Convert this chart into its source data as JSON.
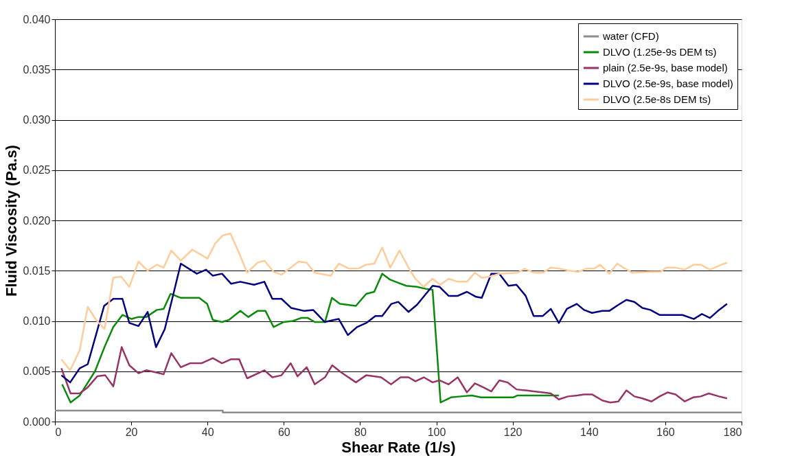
{
  "chart_data": {
    "type": "line",
    "xlabel": "Shear Rate (1/s)",
    "ylabel": "Fluid Viscosity (Pa.s)",
    "xlim": [
      0,
      180
    ],
    "xticks": [
      0,
      20,
      40,
      60,
      80,
      100,
      120,
      140,
      160,
      180
    ],
    "ylim": [
      0,
      0.04
    ],
    "yticks": [
      {
        "value": 0,
        "label": "0.000"
      },
      {
        "value": 0.005,
        "label": "0.005"
      },
      {
        "value": 0.01,
        "label": "0.010"
      },
      {
        "value": 0.015,
        "label": "0.015"
      },
      {
        "value": 0.02,
        "label": "0.020"
      },
      {
        "value": 0.025,
        "label": "0.025"
      },
      {
        "value": 0.03,
        "label": "0.030"
      },
      {
        "value": 0.035,
        "label": "0.035"
      },
      {
        "value": 0.04,
        "label": "0.040"
      }
    ],
    "grid": "y",
    "legend": "top right",
    "marker": "none",
    "line_style": "solid",
    "series": [
      {
        "name": "water (CFD)",
        "color": "#8c8c8c",
        "x": [
          0,
          44,
          44,
          180
        ],
        "values": [
          0.0011,
          0.0011,
          0.0009,
          0.0009
        ]
      },
      {
        "name": "DLVO (1.25e-9s DEM ts)",
        "color": "#098a09",
        "x": [
          1.9,
          4.1,
          6.5,
          10.5,
          13.2,
          15.3,
          17.7,
          20.1,
          21.9,
          24,
          26.7,
          28.5,
          30.3,
          33,
          37.8,
          39.9,
          41.4,
          43.8,
          45.6,
          48.6,
          50.7,
          53.1,
          55.2,
          57.3,
          60,
          62.4,
          64.5,
          66.3,
          68.1,
          70.8,
          72.6,
          74.7,
          76.8,
          78.9,
          81.6,
          83.7,
          85.8,
          87.9,
          90,
          92.1,
          94.9,
          97.2,
          99,
          99.6,
          100.5,
          101.1,
          103.8,
          106.3,
          109.3,
          111.7,
          117.7,
          120.1,
          121.3,
          132.1
        ],
        "values": [
          0.0037,
          0.0019,
          0.0026,
          0.005,
          0.0076,
          0.0094,
          0.0106,
          0.0102,
          0.0104,
          0.0104,
          0.0111,
          0.0112,
          0.0127,
          0.0123,
          0.0123,
          0.0117,
          0.0101,
          0.0099,
          0.0101,
          0.011,
          0.0104,
          0.011,
          0.011,
          0.0094,
          0.0099,
          0.01,
          0.0103,
          0.0103,
          0.0099,
          0.0099,
          0.0123,
          0.0117,
          0.0116,
          0.0115,
          0.0127,
          0.0129,
          0.0147,
          0.0141,
          0.0138,
          0.0135,
          0.0134,
          0.0132,
          0.0131,
          0.0099,
          0.0051,
          0.0019,
          0.0024,
          0.0025,
          0.0026,
          0.0024,
          0.0024,
          0.0024,
          0.0026,
          0.0026
        ]
      },
      {
        "name": "plain (2.5e-9s, base model)",
        "color": "#993366",
        "x": [
          1.7,
          4.1,
          6.5,
          8.6,
          11.1,
          13.2,
          15.3,
          17.5,
          19.5,
          21.9,
          24,
          26.4,
          28.5,
          30.5,
          33,
          35.4,
          38.4,
          41.4,
          43.8,
          46.2,
          48.3,
          50.4,
          54.9,
          57,
          59.4,
          61.8,
          63.6,
          66,
          68.1,
          70.8,
          72.7,
          75,
          78.9,
          81.6,
          85.5,
          88.1,
          90.6,
          92.7,
          94.5,
          96.7,
          99,
          100.8,
          103.2,
          105.6,
          108,
          110.1,
          112.3,
          114.4,
          116.5,
          118.6,
          121,
          123.4,
          125.5,
          127.9,
          130,
          132.1,
          134.5,
          136.9,
          138.7,
          140.8,
          143.5,
          145.6,
          147.7,
          149.8,
          151.9,
          154,
          156.4,
          158.5,
          160.6,
          162.7,
          165.1,
          167.3,
          169.3,
          171.4,
          174.1,
          176.2
        ],
        "values": [
          0.0053,
          0.0028,
          0.0028,
          0.0034,
          0.0045,
          0.0046,
          0.0035,
          0.0074,
          0.0056,
          0.0048,
          0.0051,
          0.0049,
          0.0047,
          0.0068,
          0.0054,
          0.0058,
          0.0058,
          0.0063,
          0.0058,
          0.0062,
          0.0062,
          0.0043,
          0.0051,
          0.0044,
          0.0046,
          0.0058,
          0.0045,
          0.0054,
          0.0037,
          0.0044,
          0.0056,
          0.0049,
          0.0039,
          0.0046,
          0.0044,
          0.0037,
          0.0044,
          0.0044,
          0.004,
          0.0044,
          0.0039,
          0.0041,
          0.0037,
          0.0044,
          0.0029,
          0.0038,
          0.0034,
          0.003,
          0.0041,
          0.0039,
          0.0032,
          0.0031,
          0.003,
          0.0029,
          0.0028,
          0.0022,
          0.0025,
          0.0026,
          0.0027,
          0.0027,
          0.0021,
          0.0019,
          0.002,
          0.0031,
          0.0025,
          0.0023,
          0.002,
          0.0025,
          0.0029,
          0.0027,
          0.002,
          0.0024,
          0.0025,
          0.0028,
          0.0025,
          0.0023
        ]
      },
      {
        "name": "DLVO (2.5e-9s, base model)",
        "color": "#000080",
        "x": [
          1.7,
          4,
          6.5,
          8.6,
          12.9,
          15.3,
          17.7,
          19.5,
          21.9,
          24.3,
          26.5,
          28.8,
          33,
          37.2,
          39.6,
          41.4,
          43.8,
          46.2,
          48.6,
          52.2,
          54.9,
          57,
          59.4,
          61.9,
          65.4,
          67.7,
          70.7,
          74.4,
          76.8,
          79.2,
          81.6,
          84,
          85.8,
          88.2,
          90,
          92.7,
          94.9,
          99,
          100.8,
          103.2,
          105.6,
          108,
          110.4,
          111.9,
          114.4,
          116.5,
          118.9,
          121,
          123.4,
          125.5,
          127.9,
          130,
          132.1,
          134.2,
          136.8,
          138.7,
          140.8,
          143.5,
          145.3,
          147.7,
          149.8,
          151.9,
          154,
          156.1,
          158.5,
          164.5,
          167.5,
          169.6,
          171.7,
          174.1,
          176.2
        ],
        "values": [
          0.0046,
          0.0039,
          0.0053,
          0.0057,
          0.0115,
          0.0122,
          0.0122,
          0.0098,
          0.0095,
          0.0109,
          0.0074,
          0.0092,
          0.0157,
          0.0147,
          0.0151,
          0.0145,
          0.0147,
          0.0137,
          0.0139,
          0.0136,
          0.0139,
          0.0122,
          0.0122,
          0.0113,
          0.011,
          0.0111,
          0.0099,
          0.0102,
          0.0086,
          0.0094,
          0.0098,
          0.0105,
          0.0105,
          0.0117,
          0.0119,
          0.0109,
          0.0116,
          0.0135,
          0.0134,
          0.0125,
          0.0125,
          0.0129,
          0.0124,
          0.0123,
          0.0147,
          0.0147,
          0.0135,
          0.0136,
          0.0125,
          0.0105,
          0.0105,
          0.0112,
          0.0098,
          0.0112,
          0.0117,
          0.0111,
          0.0108,
          0.011,
          0.011,
          0.0116,
          0.0121,
          0.0119,
          0.0113,
          0.0111,
          0.0106,
          0.0106,
          0.0102,
          0.0107,
          0.0103,
          0.0111,
          0.0117
        ]
      },
      {
        "name": "DLVO (2.5e-8s DEM ts)",
        "color": "#ffcc99",
        "x": [
          1.7,
          4,
          6.5,
          8.6,
          10.8,
          13,
          15.3,
          17.4,
          19.5,
          21.9,
          24.3,
          26.7,
          28.5,
          30.5,
          33,
          36,
          40,
          42,
          44,
          46,
          48,
          50.4,
          53.1,
          54.9,
          57.3,
          59.4,
          63.9,
          66,
          68.1,
          72.3,
          74.4,
          77.1,
          79.5,
          81.6,
          83.7,
          85.8,
          87.9,
          90.3,
          93,
          94.5,
          96.6,
          99,
          101,
          103.2,
          105.6,
          108,
          110.1,
          111.9,
          114,
          116.5,
          121.3,
          123.1,
          125.5,
          127.9,
          130,
          132.1,
          134.8,
          137.2,
          139.3,
          141.4,
          142.9,
          145.3,
          147.4,
          149.5,
          151.3,
          156.1,
          158.8,
          160.3,
          162.7,
          165.1,
          167.5,
          169.3,
          171.7,
          174.1,
          176.2
        ],
        "values": [
          0.0062,
          0.0051,
          0.0071,
          0.0114,
          0.0101,
          0.0092,
          0.0143,
          0.0144,
          0.0134,
          0.0159,
          0.015,
          0.0156,
          0.0153,
          0.017,
          0.016,
          0.0171,
          0.0162,
          0.0177,
          0.0185,
          0.0187,
          0.017,
          0.0148,
          0.0158,
          0.016,
          0.0149,
          0.0146,
          0.0159,
          0.0158,
          0.0148,
          0.0145,
          0.0157,
          0.0152,
          0.0152,
          0.0156,
          0.0157,
          0.0173,
          0.0153,
          0.017,
          0.0151,
          0.0142,
          0.0134,
          0.0142,
          0.0136,
          0.0142,
          0.0139,
          0.0139,
          0.0148,
          0.0143,
          0.0144,
          0.0147,
          0.0148,
          0.0152,
          0.0148,
          0.0148,
          0.0153,
          0.0152,
          0.015,
          0.0149,
          0.0152,
          0.0152,
          0.0156,
          0.0147,
          0.0157,
          0.0152,
          0.0148,
          0.0149,
          0.0149,
          0.0153,
          0.0153,
          0.0151,
          0.0156,
          0.0156,
          0.0151,
          0.0155,
          0.0158
        ]
      }
    ]
  }
}
